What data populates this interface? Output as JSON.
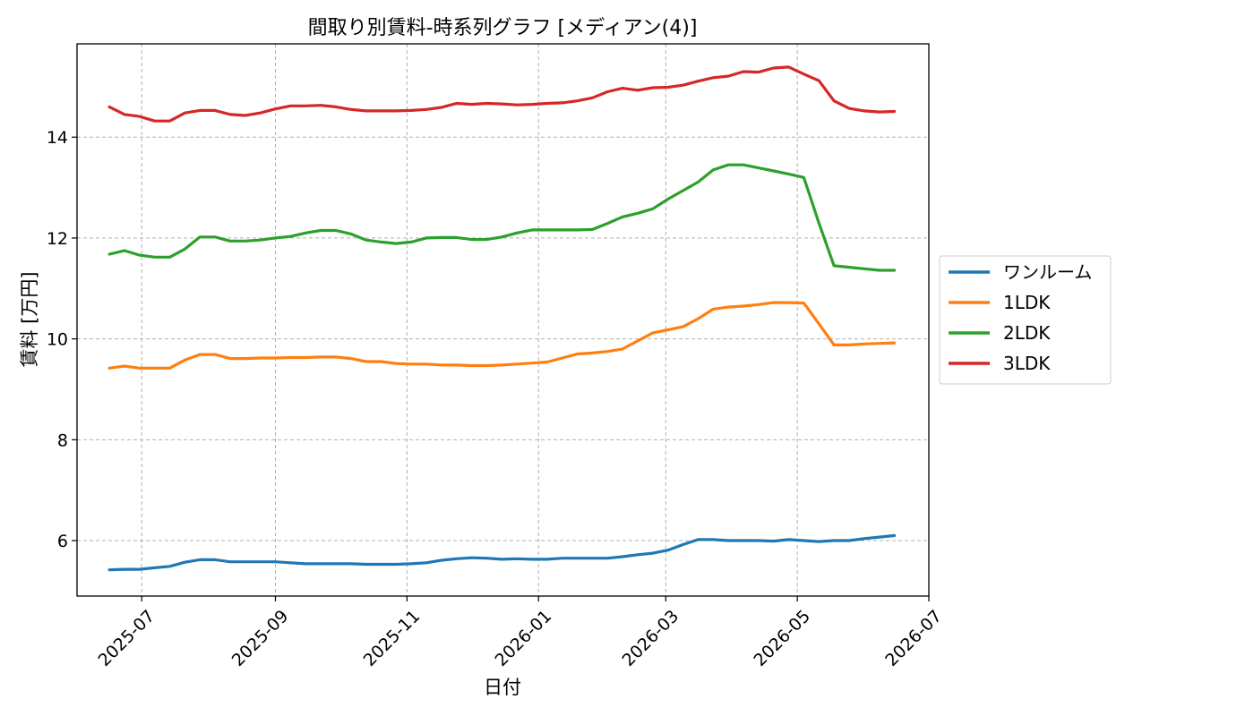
{
  "chart_data": {
    "type": "line",
    "title": "間取り別賃料-時系列グラフ [メディアン(4)]",
    "xlabel": "日付",
    "ylabel": "賃料 [万円]",
    "x": [
      "2025-06-16",
      "2025-06-23",
      "2025-06-30",
      "2025-07-07",
      "2025-07-14",
      "2025-07-21",
      "2025-07-28",
      "2025-08-04",
      "2025-08-11",
      "2025-08-18",
      "2025-08-25",
      "2025-09-01",
      "2025-09-08",
      "2025-09-15",
      "2025-09-22",
      "2025-09-29",
      "2025-10-06",
      "2025-10-13",
      "2025-10-20",
      "2025-10-27",
      "2025-11-03",
      "2025-11-10",
      "2025-11-17",
      "2025-11-24",
      "2025-12-01",
      "2025-12-08",
      "2025-12-15",
      "2025-12-22",
      "2025-12-29",
      "2026-01-05",
      "2026-01-12",
      "2026-01-19",
      "2026-01-26",
      "2026-02-02",
      "2026-02-09",
      "2026-02-16",
      "2026-02-23",
      "2026-03-02",
      "2026-03-09",
      "2026-03-16",
      "2026-03-23",
      "2026-03-30",
      "2026-04-06",
      "2026-04-13",
      "2026-04-20",
      "2026-04-27",
      "2026-05-04",
      "2026-05-11",
      "2026-05-18",
      "2026-05-25",
      "2026-06-01",
      "2026-06-08",
      "2026-06-15"
    ],
    "xlim": [
      "2025-06-01",
      "2026-07-01"
    ],
    "xticks": [
      "2025-07",
      "2025-09",
      "2025-11",
      "2026-01",
      "2026-03",
      "2026-05",
      "2026-07"
    ],
    "ylim": [
      4.9,
      15.85
    ],
    "yticks": [
      "6",
      "8",
      "10",
      "12",
      "14"
    ],
    "grid": true,
    "legend_position": "outside-right",
    "series": [
      {
        "name": "ワンルーム",
        "color": "#1f77b4",
        "values": [
          5.42,
          5.43,
          5.43,
          5.46,
          5.49,
          5.57,
          5.62,
          5.62,
          5.58,
          5.58,
          5.58,
          5.58,
          5.56,
          5.54,
          5.54,
          5.54,
          5.54,
          5.53,
          5.53,
          5.53,
          5.54,
          5.56,
          5.61,
          5.64,
          5.66,
          5.65,
          5.63,
          5.64,
          5.63,
          5.63,
          5.65,
          5.65,
          5.65,
          5.65,
          5.68,
          5.72,
          5.75,
          5.81,
          5.92,
          6.02,
          6.02,
          6.0,
          6.0,
          6.0,
          5.99,
          6.02,
          6.0,
          5.98,
          6.0,
          6.0,
          6.04,
          6.07,
          6.1
        ]
      },
      {
        "name": "1LDK",
        "color": "#ff7f0e",
        "values": [
          9.42,
          9.46,
          9.42,
          9.42,
          9.42,
          9.58,
          9.69,
          9.69,
          9.61,
          9.61,
          9.62,
          9.62,
          9.63,
          9.63,
          9.64,
          9.64,
          9.61,
          9.55,
          9.55,
          9.51,
          9.5,
          9.5,
          9.48,
          9.48,
          9.47,
          9.47,
          9.48,
          9.5,
          9.52,
          9.54,
          9.62,
          9.7,
          9.72,
          9.75,
          9.8,
          9.96,
          10.12,
          10.18,
          10.24,
          10.4,
          10.59,
          10.63,
          10.65,
          10.68,
          10.72,
          10.72,
          10.71,
          10.3,
          9.88,
          9.88,
          9.9,
          9.91,
          9.92
        ]
      },
      {
        "name": "2LDK",
        "color": "#2ca02c",
        "values": [
          11.68,
          11.75,
          11.66,
          11.62,
          11.62,
          11.78,
          12.02,
          12.02,
          11.94,
          11.94,
          11.96,
          12.0,
          12.03,
          12.1,
          12.15,
          12.15,
          12.08,
          11.96,
          11.92,
          11.89,
          11.92,
          12.0,
          12.01,
          12.01,
          11.97,
          11.97,
          12.02,
          12.1,
          12.16,
          12.16,
          12.16,
          12.16,
          12.17,
          12.29,
          12.42,
          12.49,
          12.58,
          12.77,
          12.94,
          13.11,
          13.35,
          13.45,
          13.45,
          13.39,
          13.33,
          13.27,
          13.2,
          12.3,
          11.45,
          11.42,
          11.39,
          11.36,
          11.36
        ]
      },
      {
        "name": "3LDK",
        "color": "#d62728",
        "values": [
          14.6,
          14.45,
          14.41,
          14.32,
          14.32,
          14.48,
          14.53,
          14.53,
          14.45,
          14.43,
          14.48,
          14.56,
          14.62,
          14.62,
          14.63,
          14.6,
          14.55,
          14.52,
          14.52,
          14.52,
          14.53,
          14.55,
          14.59,
          14.67,
          14.65,
          14.67,
          14.66,
          14.64,
          14.65,
          14.67,
          14.68,
          14.72,
          14.78,
          14.9,
          14.97,
          14.93,
          14.98,
          14.99,
          15.03,
          15.11,
          15.18,
          15.21,
          15.3,
          15.29,
          15.37,
          15.39,
          15.25,
          15.12,
          14.72,
          14.57,
          14.52,
          14.5,
          14.51
        ]
      }
    ]
  }
}
